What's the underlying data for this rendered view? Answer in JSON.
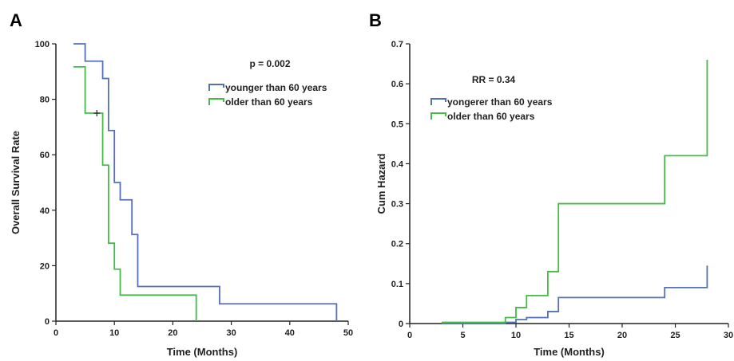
{
  "colors": {
    "blue": "#5470b8",
    "green": "#44bb44"
  },
  "chart_data": [
    {
      "type": "line",
      "panel_label": "A",
      "xlabel": "Time (Months)",
      "ylabel": "Overall Survival Rate",
      "xlim": [
        0,
        50
      ],
      "ylim": [
        0,
        100
      ],
      "xticks": [
        0,
        10,
        20,
        30,
        40,
        50
      ],
      "yticks": [
        0,
        20,
        40,
        60,
        80,
        100
      ],
      "annotation": "p = 0.002",
      "series": [
        {
          "name": "younger than 60 years",
          "color": "#5470b8",
          "x": [
            3,
            5,
            8,
            9,
            10,
            11,
            13,
            14,
            28,
            48,
            48
          ],
          "y": [
            100,
            93.75,
            87.5,
            68.75,
            50,
            43.75,
            31.25,
            12.5,
            6.25,
            6.25,
            0
          ]
        },
        {
          "name": "older than 60 years",
          "color": "#44bb44",
          "x": [
            3,
            5,
            8,
            9,
            10,
            11,
            24,
            24
          ],
          "y": [
            91.7,
            75,
            56.25,
            28.1,
            18.75,
            9.4,
            9.4,
            0
          ]
        }
      ],
      "censor_marks": [
        {
          "series": 1,
          "x": 7,
          "y": 75
        }
      ]
    },
    {
      "type": "line",
      "panel_label": "B",
      "xlabel": "Time (Months)",
      "ylabel": "Cum Hazard",
      "xlim": [
        0,
        30
      ],
      "ylim": [
        0,
        0.7
      ],
      "xticks": [
        0,
        5,
        10,
        15,
        20,
        25,
        30
      ],
      "yticks": [
        0,
        0.1,
        0.2,
        0.3,
        0.4,
        0.5,
        0.6,
        0.7
      ],
      "yticklabels": [
        "0",
        "0.1",
        "0.2",
        "0.3",
        "0.4",
        "0.5",
        "0.6",
        "0.7"
      ],
      "annotation": "RR = 0.34",
      "series": [
        {
          "name": "yongerer than 60 years",
          "color": "#5470b8",
          "x": [
            3,
            9,
            10,
            11,
            13,
            14,
            24,
            28,
            28
          ],
          "y": [
            0,
            0.003,
            0.01,
            0.015,
            0.03,
            0.065,
            0.09,
            0.09,
            0.145
          ]
        },
        {
          "name": "older than 60 years",
          "color": "#44bb44",
          "x": [
            3,
            9,
            10,
            11,
            13,
            14,
            24,
            28,
            28
          ],
          "y": [
            0.003,
            0.015,
            0.04,
            0.07,
            0.13,
            0.3,
            0.42,
            0.42,
            0.66
          ]
        }
      ]
    }
  ]
}
